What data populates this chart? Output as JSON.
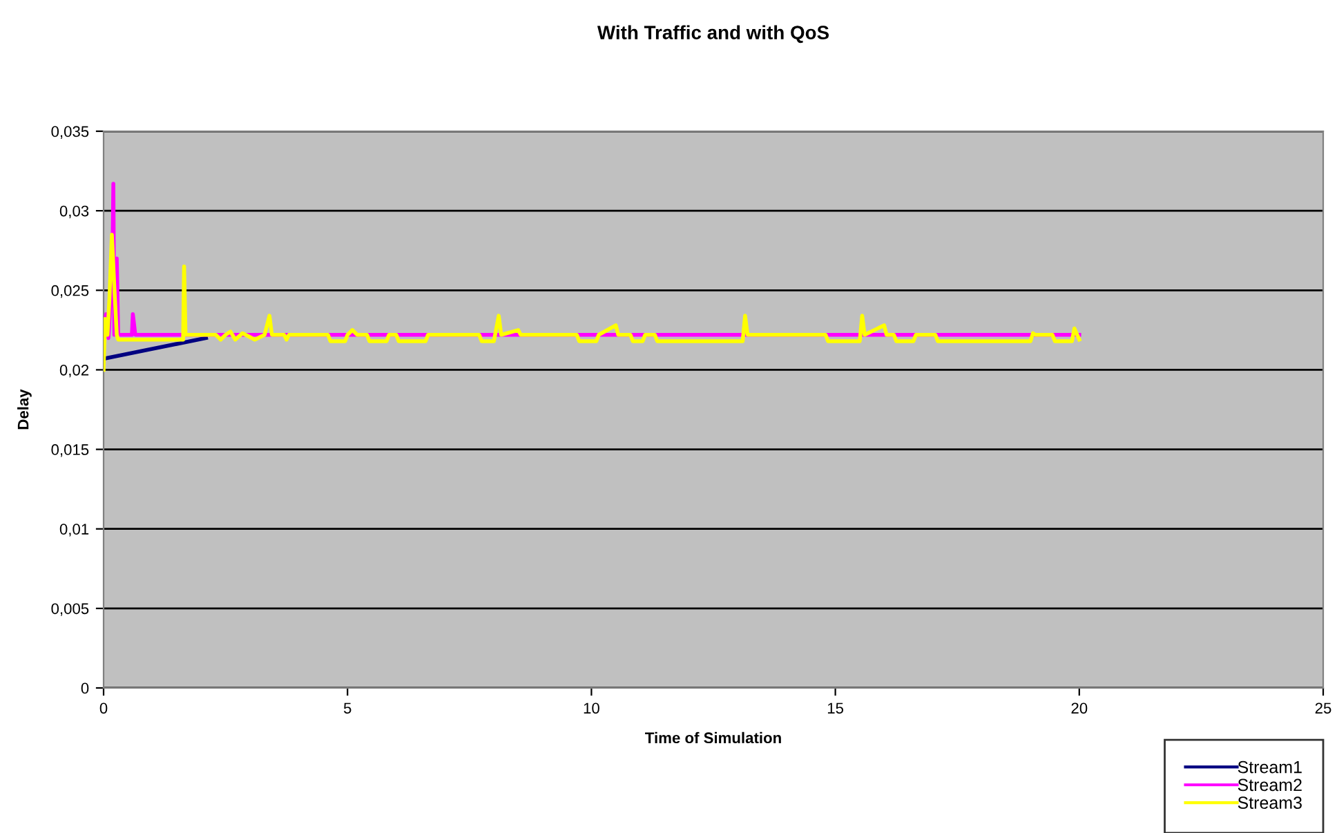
{
  "chart_data": {
    "type": "line",
    "title": "With Traffic and with QoS",
    "xlabel": "Time of Simulation",
    "ylabel": "Delay",
    "xlim": [
      0,
      25
    ],
    "ylim": [
      0,
      0.035
    ],
    "xticks": [
      0,
      5,
      10,
      15,
      20,
      25
    ],
    "yticks": [
      {
        "value": 0,
        "label": "0"
      },
      {
        "value": 0.005,
        "label": "0,005"
      },
      {
        "value": 0.01,
        "label": "0,01"
      },
      {
        "value": 0.015,
        "label": "0,015"
      },
      {
        "value": 0.02,
        "label": "0,02"
      },
      {
        "value": 0.025,
        "label": "0,025"
      },
      {
        "value": 0.03,
        "label": "0,03"
      },
      {
        "value": 0.035,
        "label": "0,035"
      }
    ],
    "grid": "y",
    "legend": "bottom right",
    "marker": "none",
    "line_style": "solid",
    "series": [
      {
        "name": "Stream1",
        "color": "#000080",
        "x": [
          0,
          2.1
        ],
        "values": [
          0.0207,
          0.022
        ]
      },
      {
        "name": "Stream2",
        "color": "#ff00ff",
        "x": [
          0,
          0.05,
          0.1,
          0.18,
          0.2,
          0.22,
          0.27,
          0.3,
          0.58,
          0.6,
          0.65,
          20
        ],
        "values": [
          0.022,
          0.0235,
          0.022,
          0.0265,
          0.0317,
          0.0222,
          0.027,
          0.0222,
          0.0222,
          0.0235,
          0.0222,
          0.0222
        ]
      },
      {
        "name": "Stream3",
        "color": "#ffff00",
        "x": [
          0,
          0.03,
          0.08,
          0.12,
          0.17,
          0.22,
          0.27,
          0.3,
          1.63,
          1.65,
          1.68,
          2.3,
          2.4,
          2.5,
          2.6,
          2.7,
          2.85,
          3.1,
          3.3,
          3.4,
          3.45,
          3.7,
          3.75,
          3.8,
          4.6,
          4.65,
          4.95,
          5.0,
          5.1,
          5.2,
          5.4,
          5.45,
          5.8,
          5.85,
          6.0,
          6.05,
          6.6,
          6.65,
          7.7,
          7.75,
          8.0,
          8.1,
          8.15,
          8.5,
          8.55,
          9.7,
          9.75,
          10.1,
          10.15,
          10.5,
          10.55,
          10.8,
          10.85,
          11.05,
          11.1,
          11.3,
          11.35,
          13.1,
          13.15,
          13.2,
          14.8,
          14.85,
          15.5,
          15.55,
          15.6,
          16.0,
          16.05,
          16.2,
          16.25,
          16.6,
          16.65,
          17.05,
          17.1,
          19.0,
          19.05,
          19.1,
          19.45,
          19.5,
          19.85,
          19.9,
          20.0
        ],
        "values": [
          0.02,
          0.0232,
          0.0222,
          0.0245,
          0.0285,
          0.0252,
          0.0222,
          0.0219,
          0.0219,
          0.0265,
          0.0222,
          0.0222,
          0.0219,
          0.0222,
          0.0224,
          0.0219,
          0.0223,
          0.0219,
          0.0222,
          0.0234,
          0.0222,
          0.0222,
          0.0219,
          0.0222,
          0.0222,
          0.0218,
          0.0218,
          0.0222,
          0.0225,
          0.0222,
          0.0222,
          0.0218,
          0.0218,
          0.0222,
          0.0222,
          0.0218,
          0.0218,
          0.0222,
          0.0222,
          0.0218,
          0.0218,
          0.0234,
          0.0222,
          0.0225,
          0.0222,
          0.0222,
          0.0218,
          0.0218,
          0.0222,
          0.0228,
          0.0222,
          0.0222,
          0.0218,
          0.0218,
          0.0222,
          0.0222,
          0.0218,
          0.0218,
          0.0234,
          0.0222,
          0.0222,
          0.0218,
          0.0218,
          0.0234,
          0.0222,
          0.0228,
          0.0222,
          0.0222,
          0.0218,
          0.0218,
          0.0222,
          0.0222,
          0.0218,
          0.0218,
          0.0223,
          0.0222,
          0.0222,
          0.0218,
          0.0218,
          0.0226,
          0.0219
        ]
      }
    ]
  }
}
